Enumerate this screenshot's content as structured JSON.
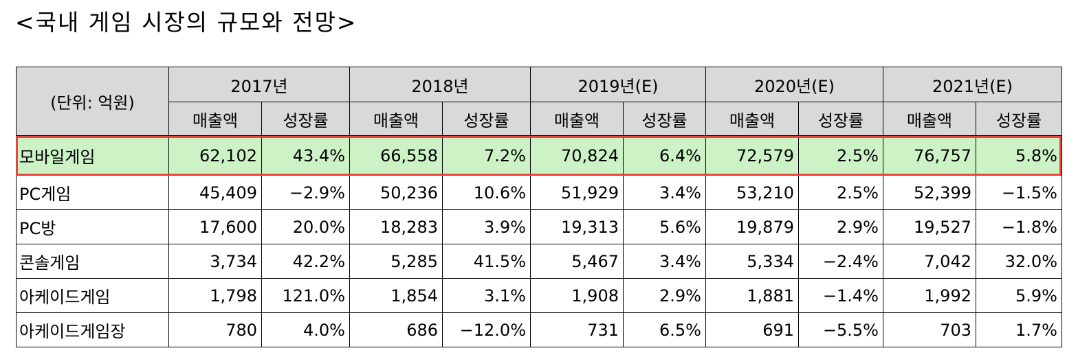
{
  "title": "<국내 게임 시장의 규모와 전망>",
  "table": {
    "unit_label": "(단위: 억원)",
    "years": [
      "2017년",
      "2018년",
      "2019년(E)",
      "2020년(E)",
      "2021년(E)"
    ],
    "sub_headers": {
      "sales": "매출액",
      "growth": "성장률"
    },
    "highlight_color": "#e8453c",
    "highlight_fill": "#cdf2c6",
    "rows": [
      {
        "name": "모바일게임",
        "cells": [
          "62,102",
          "43.4%",
          "66,558",
          "7.2%",
          "70,824",
          "6.4%",
          "72,579",
          "2.5%",
          "76,757",
          "5.8%"
        ]
      },
      {
        "name": "PC게임",
        "cells": [
          "45,409",
          "−2.9%",
          "50,236",
          "10.6%",
          "51,929",
          "3.4%",
          "53,210",
          "2.5%",
          "52,399",
          "−1.5%"
        ]
      },
      {
        "name": "PC방",
        "cells": [
          "17,600",
          "20.0%",
          "18,283",
          "3.9%",
          "19,313",
          "5.6%",
          "19,879",
          "2.9%",
          "19,527",
          "−1.8%"
        ]
      },
      {
        "name": "콘솔게임",
        "cells": [
          "3,734",
          "42.2%",
          "5,285",
          "41.5%",
          "5,467",
          "3.4%",
          "5,334",
          "−2.4%",
          "7,042",
          "32.0%"
        ]
      },
      {
        "name": "아케이드게임",
        "cells": [
          "1,798",
          "121.0%",
          "1,854",
          "3.1%",
          "1,908",
          "2.9%",
          "1,881",
          "−1.4%",
          "1,992",
          "5.9%"
        ]
      },
      {
        "name": "아케이드게임장",
        "cells": [
          "780",
          "4.0%",
          "686",
          "−12.0%",
          "731",
          "6.5%",
          "691",
          "−5.5%",
          "703",
          "1.7%"
        ]
      }
    ]
  }
}
